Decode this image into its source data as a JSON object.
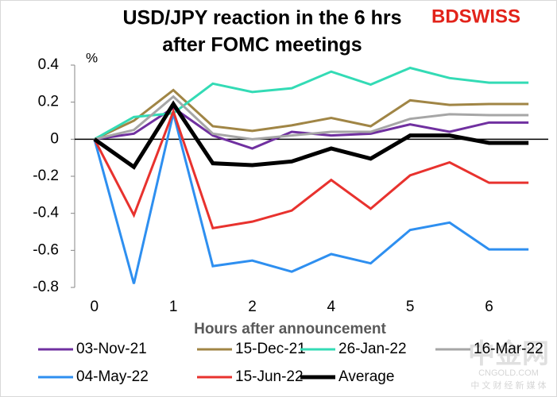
{
  "chart_data": {
    "type": "line",
    "title": [
      "USD/JPY reaction in the 6 hrs",
      "after FOMC meetings"
    ],
    "logo": "BDSWISS",
    "watermark": [
      "中金网",
      "CNGOLD.COM",
      "中 文 财 经 新 媒 体"
    ],
    "y_unit": "%",
    "x_label": "Hours after announcement",
    "categories": [
      "0",
      null,
      "1",
      null,
      "2",
      null,
      "4",
      null,
      "5",
      null,
      "6",
      null
    ],
    "ylim": [
      -0.8,
      0.4
    ],
    "yticks": [
      0.4,
      0.2,
      0,
      -0.2,
      -0.4,
      -0.6,
      -0.8
    ],
    "series": [
      {
        "name": "03-Nov-21",
        "color": "#7030a0",
        "values": [
          0,
          0.03,
          0.17,
          0.02,
          -0.05,
          0.04,
          0.02,
          0.03,
          0.08,
          0.04,
          0.09,
          0.09
        ]
      },
      {
        "name": "15-Dec-21",
        "color": "#a08545",
        "values": [
          0,
          0.1,
          0.265,
          0.07,
          0.045,
          0.075,
          0.115,
          0.07,
          0.21,
          0.185,
          0.19,
          0.19
        ]
      },
      {
        "name": "26-Jan-22",
        "color": "#33dbb5",
        "values": [
          0,
          0.12,
          0.14,
          0.3,
          0.255,
          0.275,
          0.365,
          0.295,
          0.385,
          0.33,
          0.305,
          0.305
        ]
      },
      {
        "name": "16-Mar-22",
        "color": "#a6a6a6",
        "values": [
          0,
          0.05,
          0.23,
          0.03,
          0,
          0.02,
          0.04,
          0.04,
          0.11,
          0.135,
          0.13,
          0.13
        ]
      },
      {
        "name": "04-May-22",
        "color": "#2e8ff0",
        "values": [
          0,
          -0.78,
          0.14,
          -0.685,
          -0.655,
          -0.715,
          -0.62,
          -0.67,
          -0.49,
          -0.45,
          -0.595,
          -0.595
        ]
      },
      {
        "name": "15-Jun-22",
        "color": "#e8322e",
        "values": [
          0,
          -0.41,
          0.15,
          -0.48,
          -0.445,
          -0.385,
          -0.22,
          -0.375,
          -0.195,
          -0.125,
          -0.235,
          -0.235
        ]
      },
      {
        "name": "Average",
        "color": "#000000",
        "values": [
          0,
          -0.15,
          0.19,
          -0.13,
          -0.14,
          -0.12,
          -0.05,
          -0.105,
          0.02,
          0.02,
          -0.02,
          -0.02
        ]
      }
    ]
  }
}
